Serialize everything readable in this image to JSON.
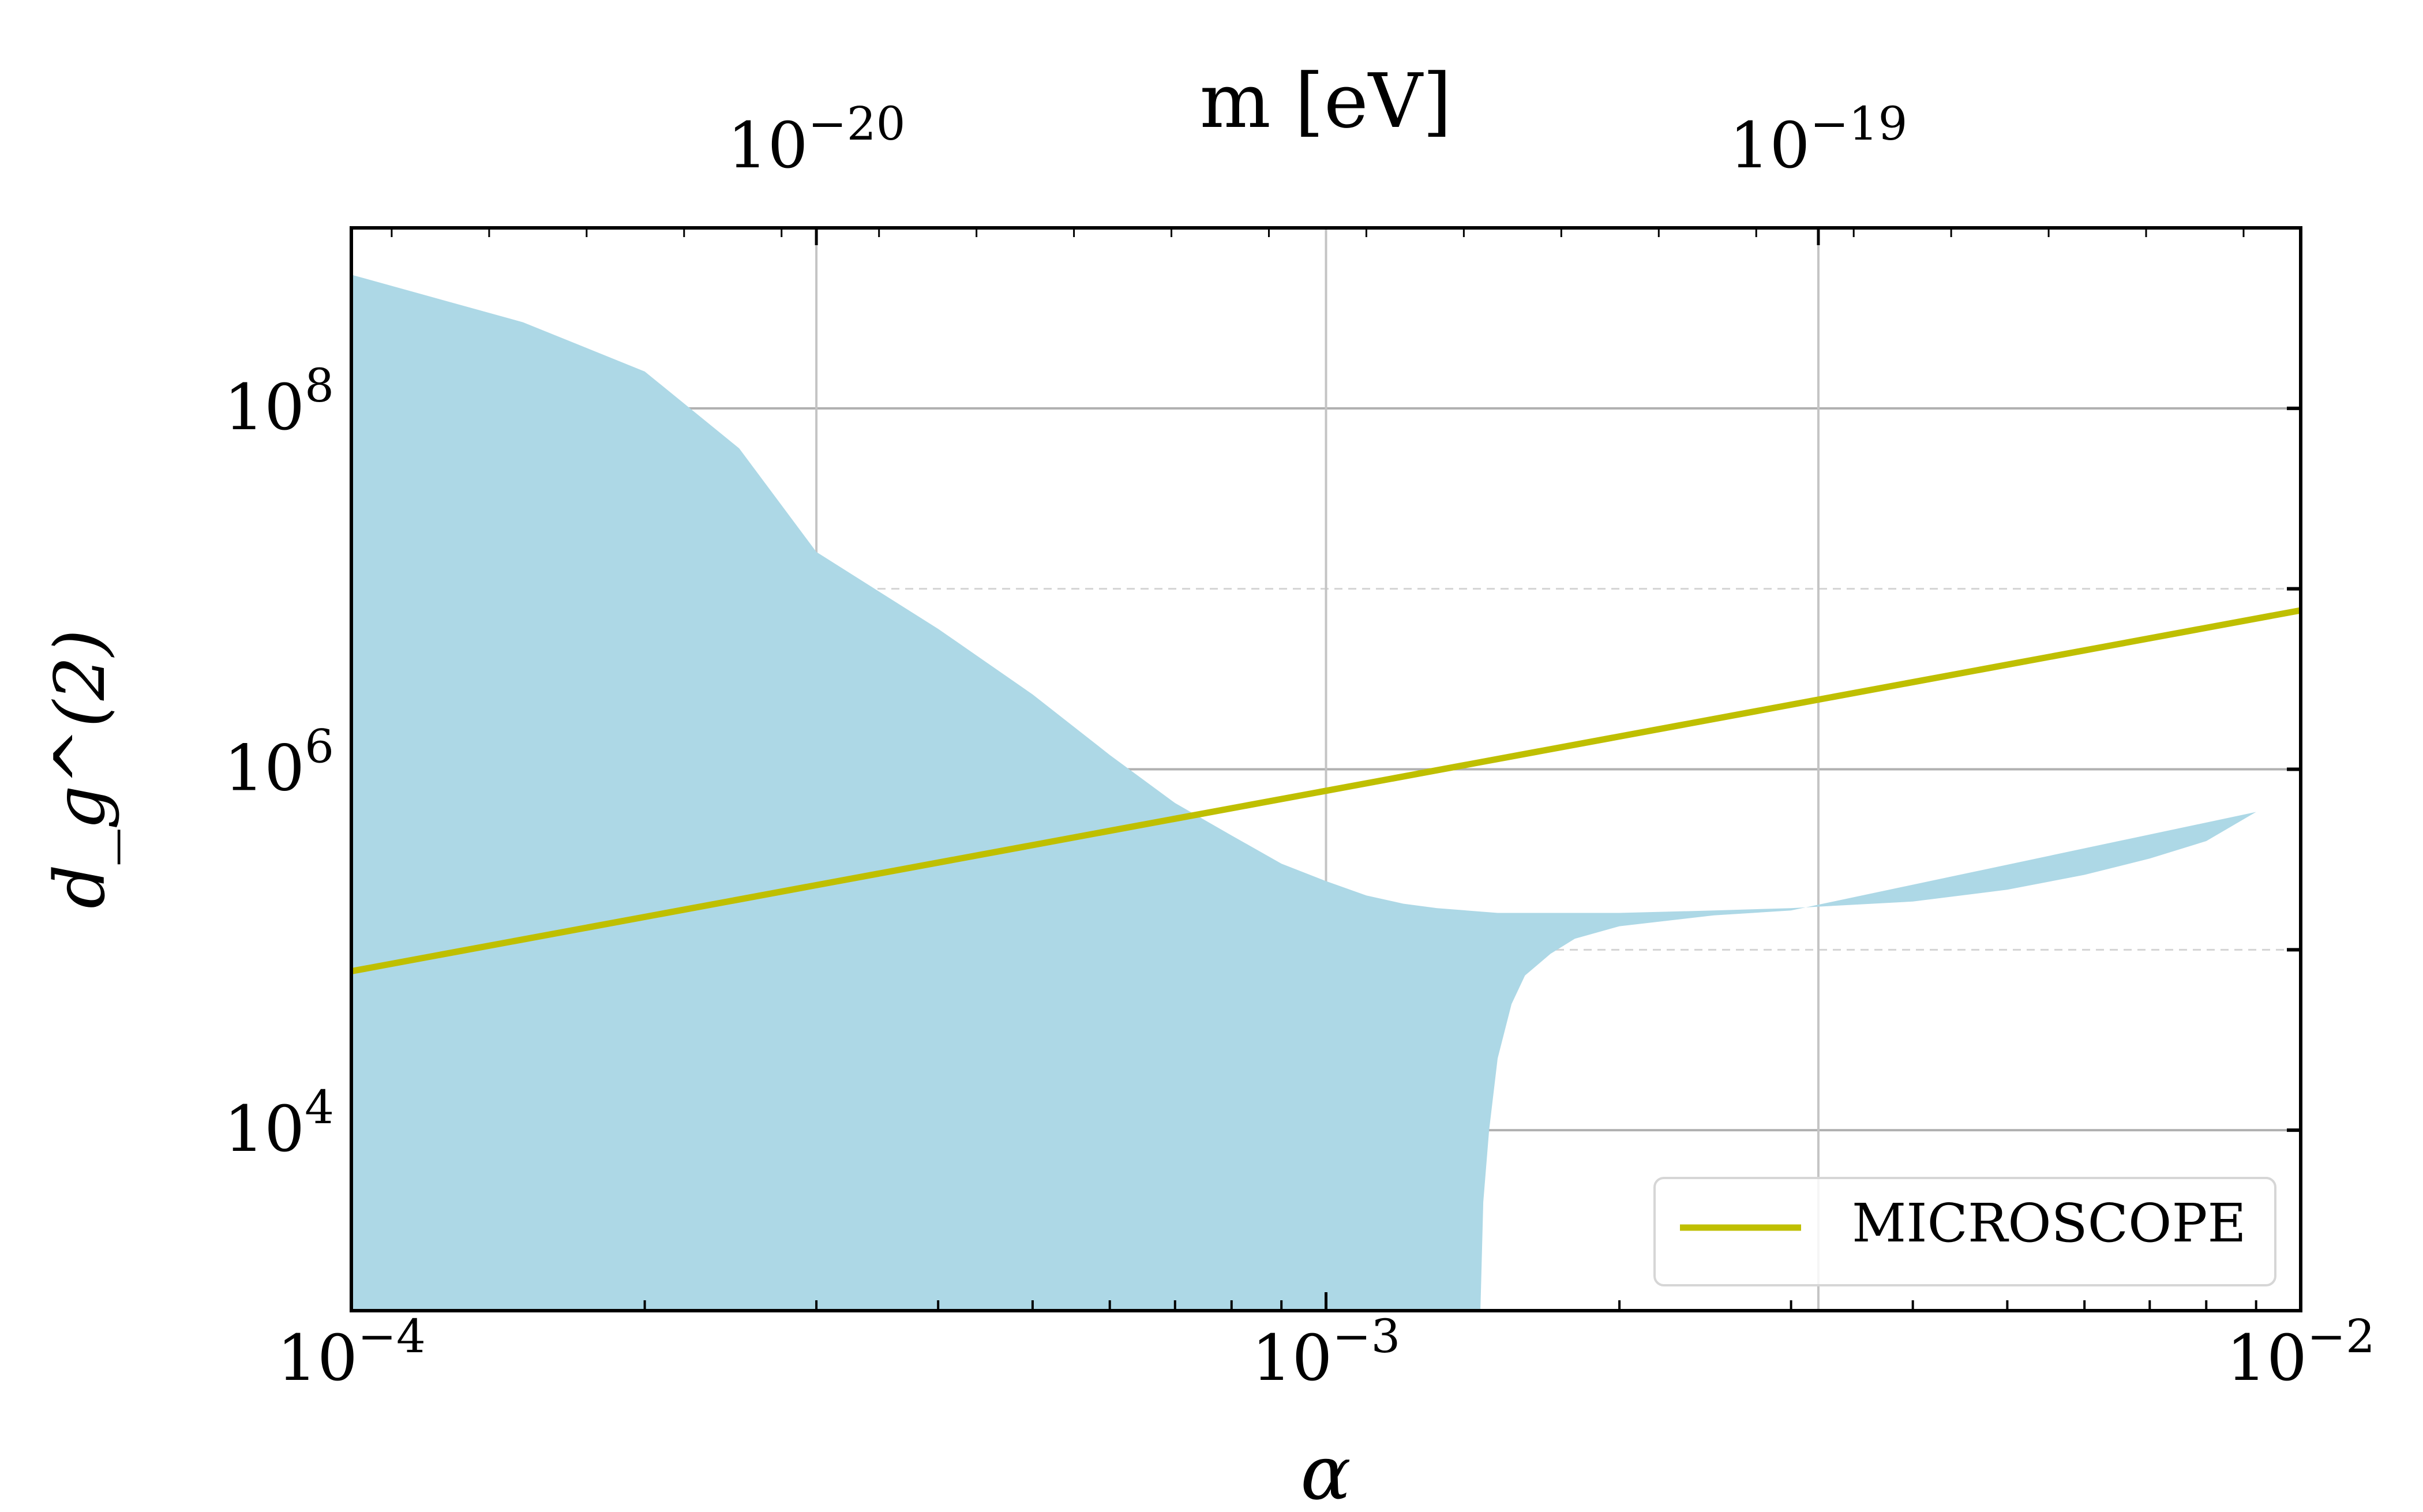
{
  "chart_data": {
    "type": "area",
    "xlabel": "α",
    "ylabel": "d_g^(2)",
    "top_xlabel": "m [eV]",
    "xscale": "log",
    "yscale": "log",
    "xlim": [
      0.0001,
      0.01
    ],
    "ylim": [
      1000,
      1000000000
    ],
    "grid": true,
    "legend_position": "bottom-right",
    "x_ticks": [
      {
        "value": 0.0001,
        "base": "10",
        "exp": "−4"
      },
      {
        "value": 0.001,
        "base": "10",
        "exp": "−3"
      },
      {
        "value": 0.01,
        "base": "10",
        "exp": "−2"
      }
    ],
    "y_ticks": [
      {
        "value": 10000,
        "base": "10",
        "exp": "4"
      },
      {
        "value": 1000000,
        "base": "10",
        "exp": "6"
      },
      {
        "value": 100000000,
        "base": "10",
        "exp": "8"
      }
    ],
    "top_ticks": [
      {
        "alpha": 0.0003,
        "base": "10",
        "exp": "−20"
      },
      {
        "alpha": 0.0032,
        "base": "10",
        "exp": "−19"
      }
    ],
    "series": [
      {
        "name": "MICROSCOPE",
        "kind": "line",
        "color": "#bfbf00",
        "x": [
          0.0001,
          0.01
        ],
        "y": [
          76000,
          7600000
        ]
      },
      {
        "kind": "region",
        "color": "#add8e6",
        "upper": {
          "x": [
            0.0001,
            0.00015,
            0.0002,
            0.00025,
            0.0003,
            0.0004,
            0.0005,
            0.0006,
            0.0007,
            0.0008,
            0.0009,
            0.001,
            0.0011,
            0.0012,
            0.0013,
            0.0015,
            0.0018,
            0.002,
            0.0025,
            0.003,
            0.004,
            0.005,
            0.006,
            0.007,
            0.008,
            0.009
          ],
          "y": [
            550000000,
            300000000,
            160000000,
            60000000,
            16000000,
            6000000,
            2600000,
            1200000,
            650000,
            430000,
            300000,
            240000,
            200000,
            180000,
            170000,
            160000,
            160000,
            160000,
            165000,
            170000,
            185000,
            215000,
            260000,
            320000,
            400000,
            580000
          ]
        },
        "lower": {
          "x": [
            0.0001,
            0.00144,
            0.00145,
            0.00147,
            0.0015,
            0.00155,
            0.0016,
            0.0017,
            0.0018,
            0.002,
            0.0025,
            0.003
          ],
          "y": [
            1000,
            1000,
            4000,
            10000,
            25000,
            50000,
            72000,
            95000,
            115000,
            135000,
            155000,
            165000
          ]
        }
      }
    ]
  }
}
